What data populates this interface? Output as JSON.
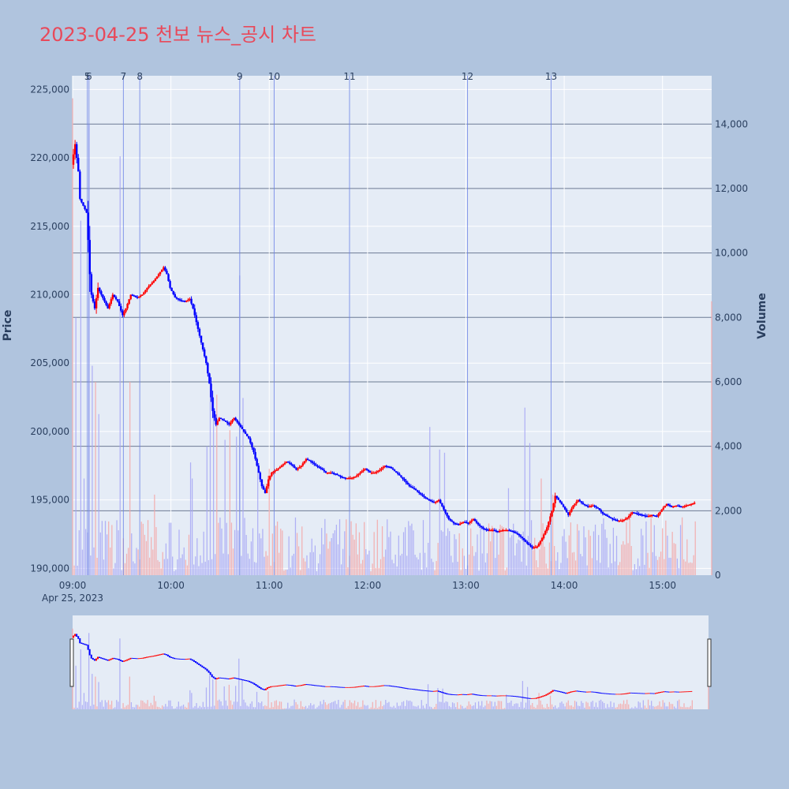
{
  "title": "2023-04-25 천보 뉴스_공시 차트",
  "colors": {
    "page_bg": "#b0c4de",
    "plot_bg": "#e5ecf6",
    "up": "#ff0000",
    "down": "#0000ff",
    "up_volume": "#f4a6a6",
    "down_volume": "#a6a6f4",
    "news_line": "#6b82e6",
    "title": "#e8495a"
  },
  "chart_data": {
    "type": "candlestick",
    "xlabel": "",
    "ylabel": "Price",
    "y2label": "Volume",
    "date_label": "Apr 25, 2023",
    "x_range": [
      "09:00",
      "15:30"
    ],
    "ylim": [
      189500,
      226000
    ],
    "y2lim": [
      0,
      15500
    ],
    "x_ticks": [
      "09:00",
      "10:00",
      "11:00",
      "12:00",
      "13:00",
      "14:00",
      "15:00"
    ],
    "y_ticks": [
      "190,000",
      "195,000",
      "200,000",
      "205,000",
      "210,000",
      "215,000",
      "220,000",
      "225,000"
    ],
    "y_tick_values": [
      190000,
      195000,
      200000,
      205000,
      210000,
      215000,
      220000,
      225000
    ],
    "y2_ticks": [
      "0",
      "2,000",
      "4,000",
      "6,000",
      "8,000",
      "10,000",
      "12,000",
      "14,000"
    ],
    "y2_tick_values": [
      0,
      2000,
      4000,
      6000,
      8000,
      10000,
      12000,
      14000
    ],
    "price_path": [
      [
        "09:00",
        219500
      ],
      [
        "09:02",
        221000
      ],
      [
        "09:04",
        219000
      ],
      [
        "09:05",
        217000
      ],
      [
        "09:07",
        216500
      ],
      [
        "09:09",
        216000
      ],
      [
        "09:10",
        214000
      ],
      [
        "09:11",
        211500
      ],
      [
        "09:12",
        210000
      ],
      [
        "09:14",
        209000
      ],
      [
        "09:16",
        210500
      ],
      [
        "09:18",
        210000
      ],
      [
        "09:20",
        209500
      ],
      [
        "09:22",
        209000
      ],
      [
        "09:25",
        210000
      ],
      [
        "09:28",
        209500
      ],
      [
        "09:31",
        208500
      ],
      [
        "09:33",
        209000
      ],
      [
        "09:36",
        210000
      ],
      [
        "09:40",
        209800
      ],
      [
        "09:43",
        210000
      ],
      [
        "09:46",
        210500
      ],
      [
        "09:50",
        211000
      ],
      [
        "09:53",
        211500
      ],
      [
        "09:56",
        212000
      ],
      [
        "09:58",
        211500
      ],
      [
        "10:00",
        210500
      ],
      [
        "10:03",
        209800
      ],
      [
        "10:06",
        209600
      ],
      [
        "10:09",
        209500
      ],
      [
        "10:12",
        209700
      ],
      [
        "10:14",
        209000
      ],
      [
        "10:16",
        208000
      ],
      [
        "10:18",
        207000
      ],
      [
        "10:20",
        206000
      ],
      [
        "10:22",
        205000
      ],
      [
        "10:24",
        203500
      ],
      [
        "10:26",
        201500
      ],
      [
        "10:28",
        200500
      ],
      [
        "10:30",
        201000
      ],
      [
        "10:33",
        200800
      ],
      [
        "10:36",
        200500
      ],
      [
        "10:39",
        201000
      ],
      [
        "10:42",
        200500
      ],
      [
        "10:45",
        200000
      ],
      [
        "10:48",
        199500
      ],
      [
        "10:51",
        198500
      ],
      [
        "10:53",
        197500
      ],
      [
        "10:56",
        196000
      ],
      [
        "10:58",
        195500
      ],
      [
        "11:00",
        196500
      ],
      [
        "11:02",
        197000
      ],
      [
        "11:05",
        197200
      ],
      [
        "11:08",
        197500
      ],
      [
        "11:11",
        197800
      ],
      [
        "11:14",
        197600
      ],
      [
        "11:17",
        197200
      ],
      [
        "11:20",
        197500
      ],
      [
        "11:23",
        198000
      ],
      [
        "11:26",
        197800
      ],
      [
        "11:29",
        197500
      ],
      [
        "11:32",
        197300
      ],
      [
        "11:35",
        197000
      ],
      [
        "11:38",
        197000
      ],
      [
        "11:41",
        196900
      ],
      [
        "11:44",
        196700
      ],
      [
        "11:47",
        196600
      ],
      [
        "11:50",
        196600
      ],
      [
        "11:53",
        196700
      ],
      [
        "11:56",
        197000
      ],
      [
        "11:59",
        197300
      ],
      [
        "12:02",
        197000
      ],
      [
        "12:05",
        197000
      ],
      [
        "12:08",
        197200
      ],
      [
        "12:11",
        197500
      ],
      [
        "12:14",
        197400
      ],
      [
        "12:17",
        197100
      ],
      [
        "12:20",
        196800
      ],
      [
        "12:23",
        196400
      ],
      [
        "12:26",
        196000
      ],
      [
        "12:29",
        195800
      ],
      [
        "12:32",
        195500
      ],
      [
        "12:35",
        195200
      ],
      [
        "12:38",
        195000
      ],
      [
        "12:41",
        194800
      ],
      [
        "12:44",
        195000
      ],
      [
        "12:47",
        194300
      ],
      [
        "12:50",
        193600
      ],
      [
        "12:53",
        193300
      ],
      [
        "12:56",
        193200
      ],
      [
        "12:59",
        193400
      ],
      [
        "13:02",
        193300
      ],
      [
        "13:05",
        193600
      ],
      [
        "13:08",
        193200
      ],
      [
        "13:11",
        192900
      ],
      [
        "13:14",
        192800
      ],
      [
        "13:17",
        192800
      ],
      [
        "13:20",
        192700
      ],
      [
        "13:23",
        192800
      ],
      [
        "13:26",
        192800
      ],
      [
        "13:29",
        192700
      ],
      [
        "13:32",
        192500
      ],
      [
        "13:35",
        192200
      ],
      [
        "13:38",
        191800
      ],
      [
        "13:41",
        191500
      ],
      [
        "13:44",
        191600
      ],
      [
        "13:47",
        192200
      ],
      [
        "13:50",
        193000
      ],
      [
        "13:53",
        194200
      ],
      [
        "13:55",
        195300
      ],
      [
        "13:57",
        195000
      ],
      [
        "14:00",
        194500
      ],
      [
        "14:03",
        193900
      ],
      [
        "14:06",
        194600
      ],
      [
        "14:09",
        195000
      ],
      [
        "14:12",
        194700
      ],
      [
        "14:15",
        194500
      ],
      [
        "14:18",
        194600
      ],
      [
        "14:21",
        194400
      ],
      [
        "14:24",
        194000
      ],
      [
        "14:27",
        193800
      ],
      [
        "14:30",
        193600
      ],
      [
        "14:33",
        193500
      ],
      [
        "14:36",
        193500
      ],
      [
        "14:39",
        193700
      ],
      [
        "14:42",
        194100
      ],
      [
        "14:45",
        194000
      ],
      [
        "14:48",
        193900
      ],
      [
        "14:51",
        193800
      ],
      [
        "14:54",
        193900
      ],
      [
        "14:57",
        193800
      ],
      [
        "15:00",
        194300
      ],
      [
        "15:03",
        194700
      ],
      [
        "15:06",
        194500
      ],
      [
        "15:09",
        194600
      ],
      [
        "15:12",
        194500
      ],
      [
        "15:15",
        194600
      ],
      [
        "15:18",
        194700
      ],
      [
        "15:20",
        194800
      ]
    ],
    "volume_spikes": [
      [
        "09:00",
        14800
      ],
      [
        "09:02",
        8000
      ],
      [
        "09:05",
        11000
      ],
      [
        "09:07",
        3000
      ],
      [
        "09:10",
        14000
      ],
      [
        "09:12",
        6500
      ],
      [
        "09:14",
        6000
      ],
      [
        "09:16",
        5000
      ],
      [
        "09:29",
        13000
      ],
      [
        "09:35",
        6000
      ],
      [
        "09:50",
        2500
      ],
      [
        "10:12",
        3500
      ],
      [
        "10:13",
        3000
      ],
      [
        "10:22",
        4000
      ],
      [
        "10:24",
        6200
      ],
      [
        "10:26",
        5500
      ],
      [
        "10:28",
        5600
      ],
      [
        "10:33",
        4200
      ],
      [
        "10:36",
        4500
      ],
      [
        "10:40",
        4300
      ],
      [
        "10:42",
        9300
      ],
      [
        "10:44",
        5500
      ],
      [
        "10:53",
        3200
      ],
      [
        "11:00",
        3300
      ],
      [
        "12:38",
        4600
      ],
      [
        "12:44",
        3900
      ],
      [
        "12:47",
        3800
      ],
      [
        "12:56",
        1300
      ],
      [
        "13:26",
        2700
      ],
      [
        "13:36",
        5200
      ],
      [
        "13:39",
        4100
      ],
      [
        "13:46",
        3000
      ],
      [
        "13:53",
        2500
      ],
      [
        "15:30",
        8500
      ]
    ],
    "volume_base_min": 300,
    "volume_base_max": 1800,
    "news_markers": [
      {
        "label": "5",
        "time": "09:09"
      },
      {
        "label": "6",
        "time": "09:10"
      },
      {
        "label": "7",
        "time": "09:31"
      },
      {
        "label": "8",
        "time": "09:41"
      },
      {
        "label": "9",
        "time": "10:42"
      },
      {
        "label": "10",
        "time": "11:03"
      },
      {
        "label": "11",
        "time": "11:49"
      },
      {
        "label": "12",
        "time": "13:01"
      },
      {
        "label": "13",
        "time": "13:52"
      }
    ]
  }
}
